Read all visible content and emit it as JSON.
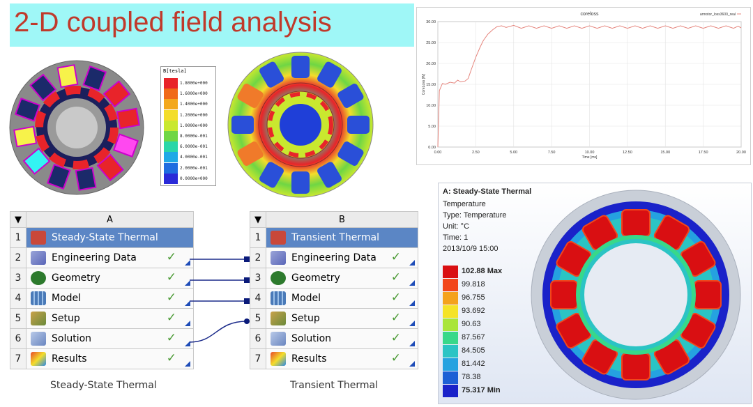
{
  "title": "2-D coupled field analysis",
  "colorbar": {
    "title": "B[tesla]",
    "labels": [
      "1.8000e+000",
      "1.6000e+000",
      "1.4000e+000",
      "1.2000e+000",
      "1.0000e+000",
      "8.0000e-001",
      "6.0000e-001",
      "4.0000e-001",
      "2.0000e-001",
      "0.0000e+000"
    ],
    "colors": [
      "#e8242a",
      "#f06a18",
      "#f3a81d",
      "#f3dd2b",
      "#c9e82f",
      "#6fd644",
      "#2ad6a8",
      "#1fa9e6",
      "#1f6de0",
      "#2a2ad8"
    ]
  },
  "chart_data": {
    "type": "line",
    "title": "coreloss",
    "legend": "armotor_loss3600_real",
    "xlabel": "Time [ms]",
    "ylabel": "CoreLoss [W]",
    "xlim": [
      0,
      20
    ],
    "ylim": [
      0,
      30
    ],
    "xticks": [
      "0.00",
      "2.50",
      "5.00",
      "7.50",
      "10.00",
      "12.50",
      "15.00",
      "17.50",
      "20.00"
    ],
    "yticks": [
      "0.00",
      "5.00",
      "10.00",
      "15.00",
      "20.00",
      "25.00",
      "30.00"
    ],
    "series": [
      {
        "name": "armotor_loss3600_real",
        "x": [
          0,
          0.1,
          0.3,
          0.5,
          0.8,
          1.1,
          1.3,
          1.5,
          1.8,
          2.0,
          2.2,
          2.5,
          2.8,
          3.0,
          3.3,
          3.6,
          3.9,
          4.2,
          4.5,
          5.0,
          5.5,
          6.0,
          6.5,
          7.0,
          7.5,
          8.0,
          8.5,
          9.0,
          9.5,
          10.0,
          10.5,
          11.0,
          11.5,
          12.0,
          12.5,
          13.0,
          13.5,
          14.0,
          14.5,
          15.0,
          15.5,
          16.0,
          16.5,
          17.0,
          17.5,
          18.0,
          18.5,
          19.0,
          19.5,
          19.8,
          20.0
        ],
        "y": [
          0,
          13.5,
          15.2,
          15.0,
          15.5,
          15.3,
          16.0,
          15.6,
          15.8,
          16.4,
          18.5,
          21.5,
          24.0,
          25.5,
          27.0,
          28.0,
          28.8,
          29.0,
          28.6,
          29.1,
          28.4,
          29.0,
          28.4,
          29.0,
          28.4,
          29.0,
          28.4,
          29.0,
          28.4,
          29.0,
          28.4,
          29.0,
          28.4,
          29.0,
          28.4,
          29.0,
          28.4,
          29.0,
          28.4,
          29.0,
          28.4,
          29.0,
          28.4,
          29.0,
          28.4,
          29.0,
          28.4,
          29.0,
          28.4,
          28.9,
          28.5
        ],
        "color": "#e5847c"
      }
    ]
  },
  "workbench": {
    "system_a": {
      "column": "A",
      "caption": "Steady-State Thermal",
      "rows": [
        {
          "num": "1",
          "label": "Steady-State Thermal",
          "icon": "thermal-system-icon"
        },
        {
          "num": "2",
          "label": "Engineering Data",
          "icon": "engineering-data-icon"
        },
        {
          "num": "3",
          "label": "Geometry",
          "icon": "geometry-icon"
        },
        {
          "num": "4",
          "label": "Model",
          "icon": "model-icon"
        },
        {
          "num": "5",
          "label": "Setup",
          "icon": "setup-icon"
        },
        {
          "num": "6",
          "label": "Solution",
          "icon": "solution-icon"
        },
        {
          "num": "7",
          "label": "Results",
          "icon": "results-icon"
        }
      ]
    },
    "system_b": {
      "column": "B",
      "caption": "Transient Thermal",
      "rows": [
        {
          "num": "1",
          "label": "Transient Thermal",
          "icon": "thermal-system-icon"
        },
        {
          "num": "2",
          "label": "Engineering Data",
          "icon": "engineering-data-icon"
        },
        {
          "num": "3",
          "label": "Geometry",
          "icon": "geometry-icon"
        },
        {
          "num": "4",
          "label": "Model",
          "icon": "model-icon"
        },
        {
          "num": "5",
          "label": "Setup",
          "icon": "setup-icon"
        },
        {
          "num": "6",
          "label": "Solution",
          "icon": "solution-icon"
        },
        {
          "num": "7",
          "label": "Results",
          "icon": "results-icon"
        }
      ]
    },
    "check_glyph": "✓",
    "dropdown_glyph": "▼"
  },
  "thermal": {
    "title": "A: Steady-State Thermal",
    "lines": [
      "Temperature",
      "Type: Temperature",
      "Unit: °C",
      "Time: 1",
      "2013/10/9 15:00"
    ],
    "legend": [
      {
        "label": "102.88 Max",
        "color": "#d90f12",
        "bold": true
      },
      {
        "label": "99.818",
        "color": "#f2461b"
      },
      {
        "label": "96.755",
        "color": "#f4a21d"
      },
      {
        "label": "93.692",
        "color": "#f5e327"
      },
      {
        "label": "90.63",
        "color": "#a9e53a"
      },
      {
        "label": "87.567",
        "color": "#38d88a"
      },
      {
        "label": "84.505",
        "color": "#2bc4c4"
      },
      {
        "label": "81.442",
        "color": "#25a2e0"
      },
      {
        "label": "78.38",
        "color": "#1c5fd5"
      },
      {
        "label": "75.317 Min",
        "color": "#1a22c9",
        "bold": true
      }
    ]
  }
}
